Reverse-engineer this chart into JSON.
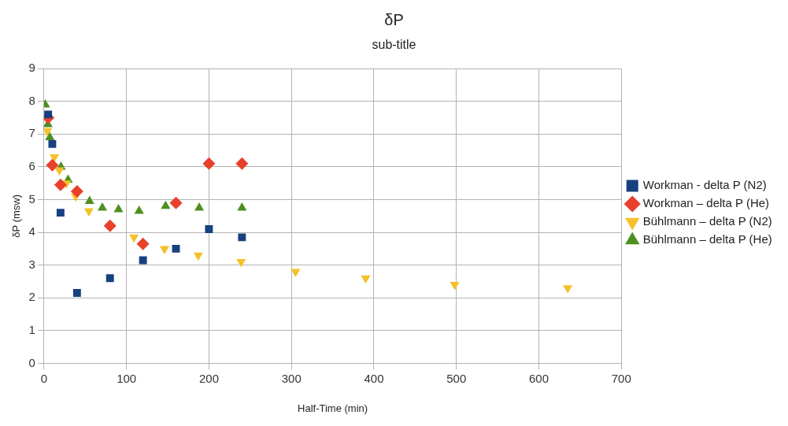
{
  "chart_data": {
    "type": "scatter",
    "title": "δP",
    "subtitle": "sub-title",
    "xlabel": "Half-Time (min)",
    "ylabel": "δP (msw)",
    "xlim": [
      0,
      700
    ],
    "xticks": [
      0,
      100,
      200,
      300,
      400,
      500,
      600,
      700
    ],
    "ylim": [
      0,
      9
    ],
    "yticks": [
      0,
      1,
      2,
      3,
      4,
      5,
      6,
      7,
      8,
      9
    ],
    "grid": true,
    "legend": "right",
    "series": [
      {
        "name": "Workman - delta P (N2)",
        "color": "#17407f",
        "marker": "square",
        "x": [
          5,
          10,
          20,
          40,
          80,
          120,
          160,
          200,
          240
        ],
        "values": [
          7.6,
          6.7,
          4.6,
          2.15,
          2.6,
          3.15,
          3.5,
          4.1,
          3.85
        ]
      },
      {
        "name": "Workman – delta P (He)",
        "color": "#e8412b",
        "marker": "diamond",
        "x": [
          5,
          10,
          20,
          40,
          80,
          120,
          160,
          200,
          240
        ],
        "values": [
          7.5,
          6.05,
          5.45,
          5.25,
          4.2,
          3.65,
          4.9,
          6.1,
          6.1
        ]
      },
      {
        "name": "Bühlmann – delta P (N2)",
        "color": "#f5c12a",
        "marker": "triangle-down",
        "x": [
          4,
          8,
          12.5,
          18.5,
          27,
          38.3,
          54.3,
          77,
          109,
          146,
          187,
          239,
          305,
          390,
          498,
          635
        ],
        "values": [
          7.1,
          null,
          6.3,
          5.9,
          5.5,
          5.1,
          4.65,
          null,
          3.85,
          3.5,
          3.3,
          3.1,
          2.8,
          2.6,
          2.4,
          2.3
        ]
      },
      {
        "name": "Bühlmann – delta P (He)",
        "color": "#4e8f1f",
        "marker": "triangle",
        "x": [
          1.5,
          3,
          4.7,
          7,
          10.2,
          14.5,
          20.5,
          29.1,
          41.2,
          55.2,
          70.7,
          90.3,
          115.3,
          147.4,
          188.2,
          240
        ],
        "values": [
          7.9,
          null,
          7.3,
          6.9,
          null,
          null,
          6.0,
          5.6,
          null,
          4.95,
          4.75,
          4.7,
          4.65,
          4.8,
          4.75,
          4.75
        ]
      }
    ]
  }
}
